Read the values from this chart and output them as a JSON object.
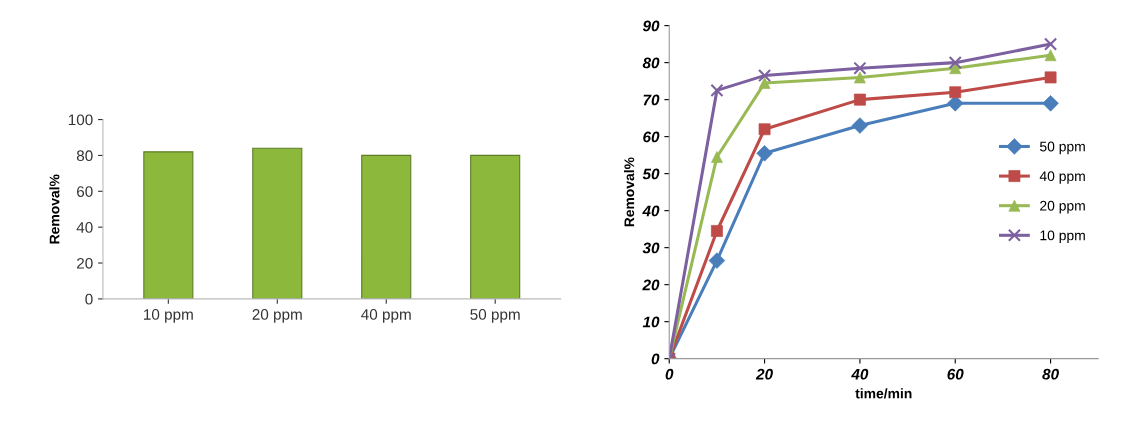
{
  "chart_data": [
    {
      "type": "bar",
      "ylabel": "Removal%",
      "categories": [
        "10 ppm",
        "20 ppm",
        "40 ppm",
        "50 ppm"
      ],
      "values": [
        82,
        84,
        80,
        80
      ],
      "color": "#8cb83c",
      "ylim": [
        0,
        100
      ],
      "yticks": [
        0,
        20,
        40,
        60,
        80,
        100
      ],
      "grid": false,
      "legend": false
    },
    {
      "type": "line",
      "xlabel": "time/min",
      "ylabel": "Removal%",
      "x": [
        0,
        10,
        20,
        40,
        60,
        80
      ],
      "xlim": [
        0,
        90
      ],
      "xticks": [
        0,
        20,
        40,
        60,
        80
      ],
      "ylim": [
        0,
        90
      ],
      "yticks": [
        0,
        10,
        20,
        30,
        40,
        50,
        60,
        70,
        80,
        90
      ],
      "grid": false,
      "legend": "right",
      "series": [
        {
          "name": "50 ppm",
          "color": "#4a7ebb",
          "marker": "diamond",
          "values": [
            0,
            26.5,
            55.5,
            63,
            69,
            69
          ]
        },
        {
          "name": "40 ppm",
          "color": "#be4b48",
          "marker": "square",
          "values": [
            0,
            34.5,
            62,
            70,
            72,
            76
          ]
        },
        {
          "name": "20 ppm",
          "color": "#98b954",
          "marker": "triangle",
          "values": [
            0,
            54.5,
            74.5,
            76,
            78.5,
            82
          ]
        },
        {
          "name": "10 ppm",
          "color": "#7d60a0",
          "marker": "cross",
          "values": [
            0,
            72.5,
            76.5,
            78.5,
            80,
            85
          ]
        }
      ]
    }
  ]
}
